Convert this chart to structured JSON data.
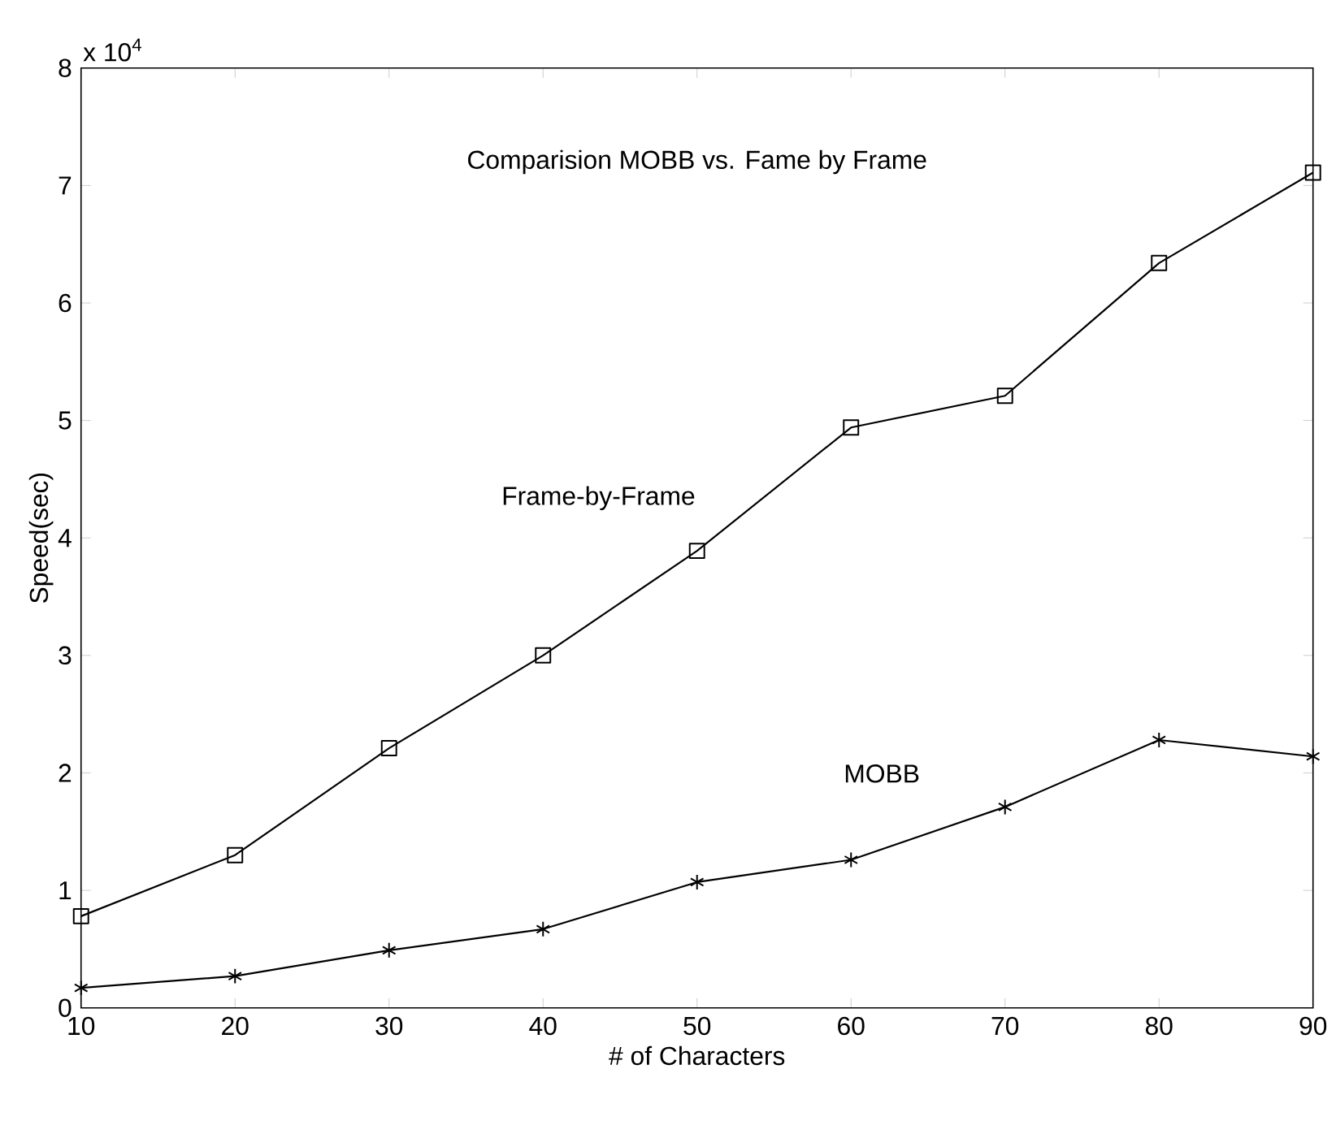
{
  "chart_data": {
    "type": "line",
    "title": "Comparision MOBB vs. Fame by Frame",
    "xlabel": "# of Characters",
    "ylabel": "Speed(sec)",
    "annotations": [
      "x 10$^{4}$"
    ],
    "x": [
      10,
      20,
      30,
      40,
      50,
      60,
      70,
      80,
      90
    ],
    "series": [
      {
        "name": "Frame-by-Frame",
        "color": "#000000",
        "marker": "square",
        "values": [
          0.78,
          1.3,
          2.21,
          3.0,
          3.89,
          4.94,
          5.21,
          6.34,
          7.11
        ]
      },
      {
        "name": "MOBB",
        "color": "#000000",
        "marker": "cross",
        "values": [
          0.17,
          0.27,
          0.49,
          0.67,
          1.07,
          1.26,
          1.71,
          2.28,
          2.14
        ]
      }
    ],
    "xlim": [
      10,
      90
    ],
    "xticks": [
      10,
      20,
      30,
      40,
      50,
      60,
      70,
      80,
      90
    ],
    "ylim": [
      0,
      8
    ],
    "yticks": [
      0,
      1,
      2,
      3,
      4,
      5,
      6,
      7,
      8
    ],
    "grid": false,
    "line_style": "solid"
  }
}
